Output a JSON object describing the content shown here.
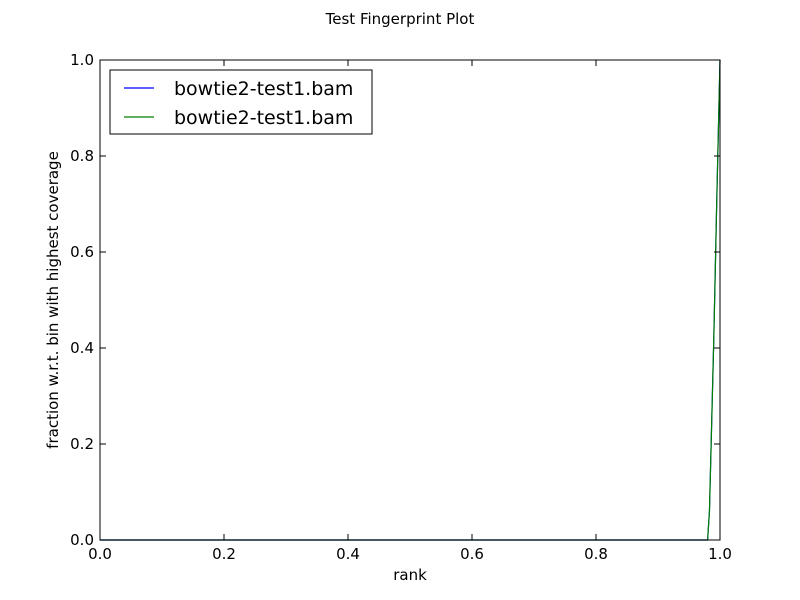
{
  "chart_data": {
    "type": "line",
    "title": "Test Fingerprint Plot",
    "xlabel": "rank",
    "ylabel": "fraction w.r.t. bin with highest coverage",
    "xlim": [
      0.0,
      1.0
    ],
    "ylim": [
      0.0,
      1.0
    ],
    "xticks": [
      "0.0",
      "0.2",
      "0.4",
      "0.6",
      "0.8",
      "1.0"
    ],
    "yticks": [
      "0.0",
      "0.2",
      "0.4",
      "0.6",
      "0.8",
      "1.0"
    ],
    "grid": false,
    "legend_position": "upper-left",
    "series": [
      {
        "name": "bowtie2-test1.bam",
        "color": "#0000ff",
        "x": [
          0.0,
          0.98,
          0.983,
          0.99,
          0.995,
          1.0
        ],
        "y": [
          0.0,
          0.0,
          0.06,
          0.42,
          0.72,
          1.0
        ]
      },
      {
        "name": "bowtie2-test1.bam",
        "color": "#008000",
        "x": [
          0.0,
          0.98,
          0.983,
          0.99,
          0.995,
          1.0
        ],
        "y": [
          0.0,
          0.0,
          0.06,
          0.42,
          0.72,
          1.0
        ]
      }
    ]
  }
}
